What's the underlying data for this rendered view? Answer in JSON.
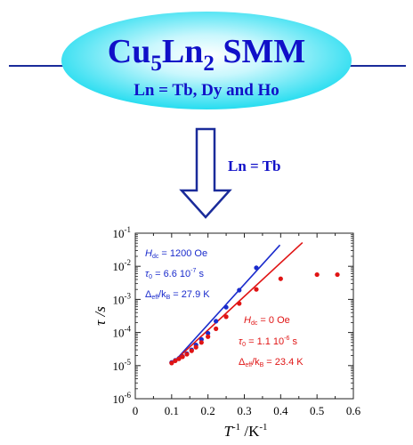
{
  "header": {
    "title_main": "Cu",
    "title_sub1": "5",
    "title_mid": "Ln",
    "title_sub2": "2",
    "title_tail": " SMM",
    "subtitle": "Ln = Tb, Dy and Ho",
    "arrow_label": "Ln = Tb",
    "colors": {
      "ellipse": "#0fd9ee",
      "text": "#1010c8",
      "line": "#1a2b9a"
    }
  },
  "chart_data": {
    "type": "scatter",
    "xlabel_base": "T",
    "xlabel_sup": "-1",
    "xlabel_unit": " /K",
    "xlabel_unit_sup": "-1",
    "ylabel": "τ /s",
    "xlim": [
      0,
      0.6
    ],
    "ylim_log10": [
      -6,
      -1
    ],
    "y_scale": "log",
    "x_ticks": [
      "0",
      "0.1",
      "0.2",
      "0.3",
      "0.4",
      "0.5",
      "0.6"
    ],
    "y_ticks": [
      {
        "base": "10",
        "exp": "-1"
      },
      {
        "base": "10",
        "exp": "-2"
      },
      {
        "base": "10",
        "exp": "-3"
      },
      {
        "base": "10",
        "exp": "-4"
      },
      {
        "base": "10",
        "exp": "-5"
      },
      {
        "base": "10",
        "exp": "-6"
      }
    ],
    "series": [
      {
        "color": "#1a2bcc",
        "points": [
          [
            0.1,
            1.25e-05
          ],
          [
            0.11,
            1.45e-05
          ],
          [
            0.12,
            1.65e-05
          ],
          [
            0.13,
            1.9e-05
          ],
          [
            0.142,
            2.3e-05
          ],
          [
            0.155,
            3e-05
          ],
          [
            0.167,
            4.2e-05
          ],
          [
            0.182,
            6.2e-05
          ],
          [
            0.2,
            9.5e-05
          ],
          [
            0.222,
            0.00022
          ],
          [
            0.25,
            0.00058
          ],
          [
            0.286,
            0.0019
          ],
          [
            0.333,
            0.009
          ]
        ],
        "fit": {
          "tau0": 6.6e-07,
          "dE": 27.9,
          "x_range": [
            0.1,
            0.398
          ]
        }
      },
      {
        "color": "#e01414",
        "points": [
          [
            0.1,
            1.2e-05
          ],
          [
            0.11,
            1.4e-05
          ],
          [
            0.12,
            1.6e-05
          ],
          [
            0.13,
            1.85e-05
          ],
          [
            0.142,
            2.2e-05
          ],
          [
            0.155,
            2.8e-05
          ],
          [
            0.167,
            3.6e-05
          ],
          [
            0.182,
            5e-05
          ],
          [
            0.2,
            7.5e-05
          ],
          [
            0.222,
            0.00013
          ],
          [
            0.25,
            0.0003
          ],
          [
            0.286,
            0.00075
          ],
          [
            0.333,
            0.002
          ],
          [
            0.4,
            0.0042
          ],
          [
            0.5,
            0.0056
          ],
          [
            0.556,
            0.0056
          ]
        ],
        "fit": {
          "tau0": 1.1e-06,
          "dE": 23.4,
          "x_range": [
            0.1,
            0.46
          ]
        }
      }
    ],
    "annotations": {
      "blue": {
        "h_label": "H",
        "h_sub": "dc",
        "h_value": " = 1200 Oe",
        "tau_label": "τ",
        "tau_sub": "0",
        "tau_value": " = 6.6 10",
        "tau_exp": "-7",
        "tau_unit": " s",
        "d_label": "Δ",
        "d_sub1": "eff",
        "d_mid": "/k",
        "d_sub2": "B",
        "d_value": " = 27.9 K"
      },
      "red": {
        "h_label": "H",
        "h_sub": "dc",
        "h_value": " = 0 Oe",
        "tau_label": "τ",
        "tau_sub": "0",
        "tau_value": " = 1.1 10",
        "tau_exp": "-6",
        "tau_unit": " s",
        "d_label": "Δ",
        "d_sub1": "eff",
        "d_mid": "/k",
        "d_sub2": "B",
        "d_value": " = 23.4 K"
      }
    }
  }
}
